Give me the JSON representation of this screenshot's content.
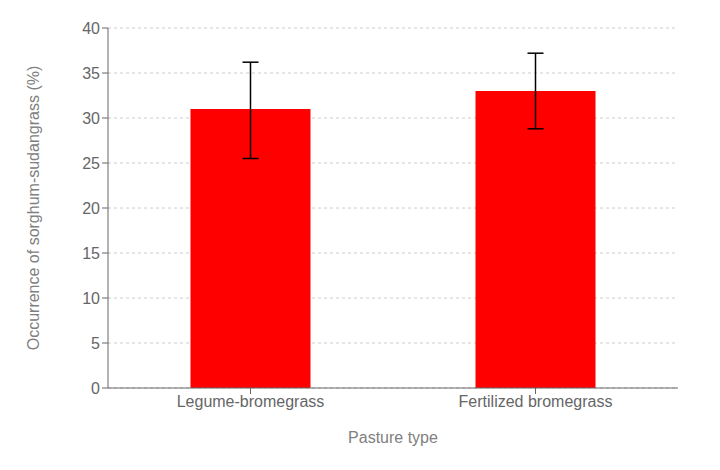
{
  "chart_data": {
    "type": "bar",
    "categories": [
      "Legume-bromegrass",
      "Fertilized bromegrass"
    ],
    "values": [
      31.0,
      33.0
    ],
    "errors_upper": [
      5.2,
      4.2
    ],
    "errors_lower": [
      5.5,
      4.2
    ],
    "color": "#ff0000",
    "xlabel": "Pasture type",
    "ylabel": "Occurrence of sorghum-sudangrass (%)",
    "ylim": [
      0,
      40
    ],
    "yticks": [
      0,
      5,
      10,
      15,
      20,
      25,
      30,
      35,
      40
    ],
    "grid": true
  }
}
